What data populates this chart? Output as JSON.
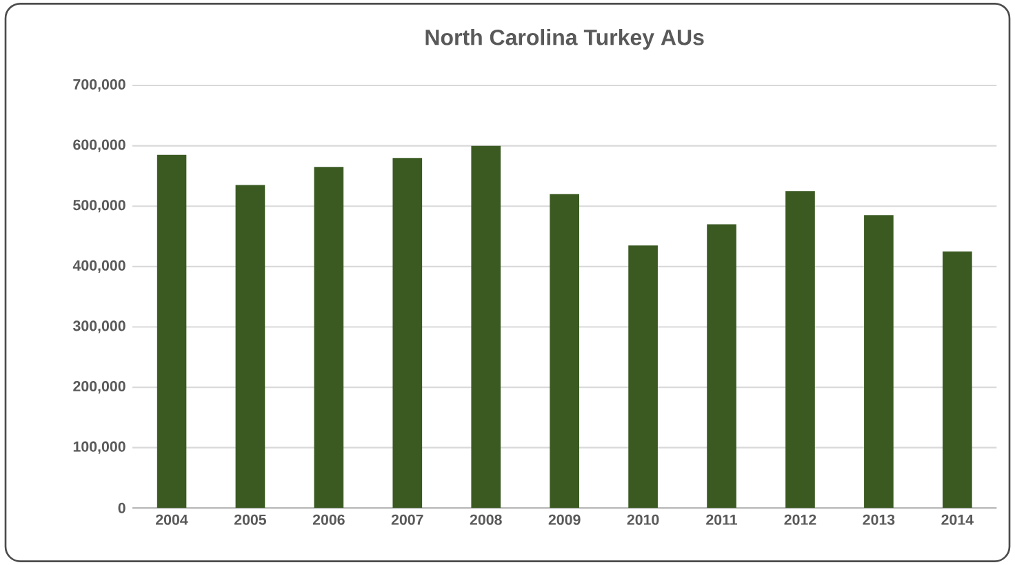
{
  "chart_data": {
    "type": "bar",
    "title": "North Carolina Turkey AUs",
    "categories": [
      "2004",
      "2005",
      "2006",
      "2007",
      "2008",
      "2009",
      "2010",
      "2011",
      "2012",
      "2013",
      "2014"
    ],
    "values": [
      585000,
      535000,
      565000,
      580000,
      600000,
      520000,
      435000,
      470000,
      525000,
      485000,
      425000
    ],
    "color": "#3a5a22",
    "ylim": [
      0,
      700000
    ],
    "yticks": [
      0,
      {
        "value": 100000,
        "label": "100,000"
      },
      {
        "value": 200000,
        "label": "200,000"
      },
      {
        "value": 300000,
        "label": "300,000"
      },
      {
        "value": 400000,
        "label": "400,000"
      },
      {
        "value": 500000,
        "label": "500,000"
      },
      {
        "value": 600000,
        "label": "600,000"
      },
      {
        "value": 700000,
        "label": "700,000"
      }
    ],
    "grid": "y"
  }
}
